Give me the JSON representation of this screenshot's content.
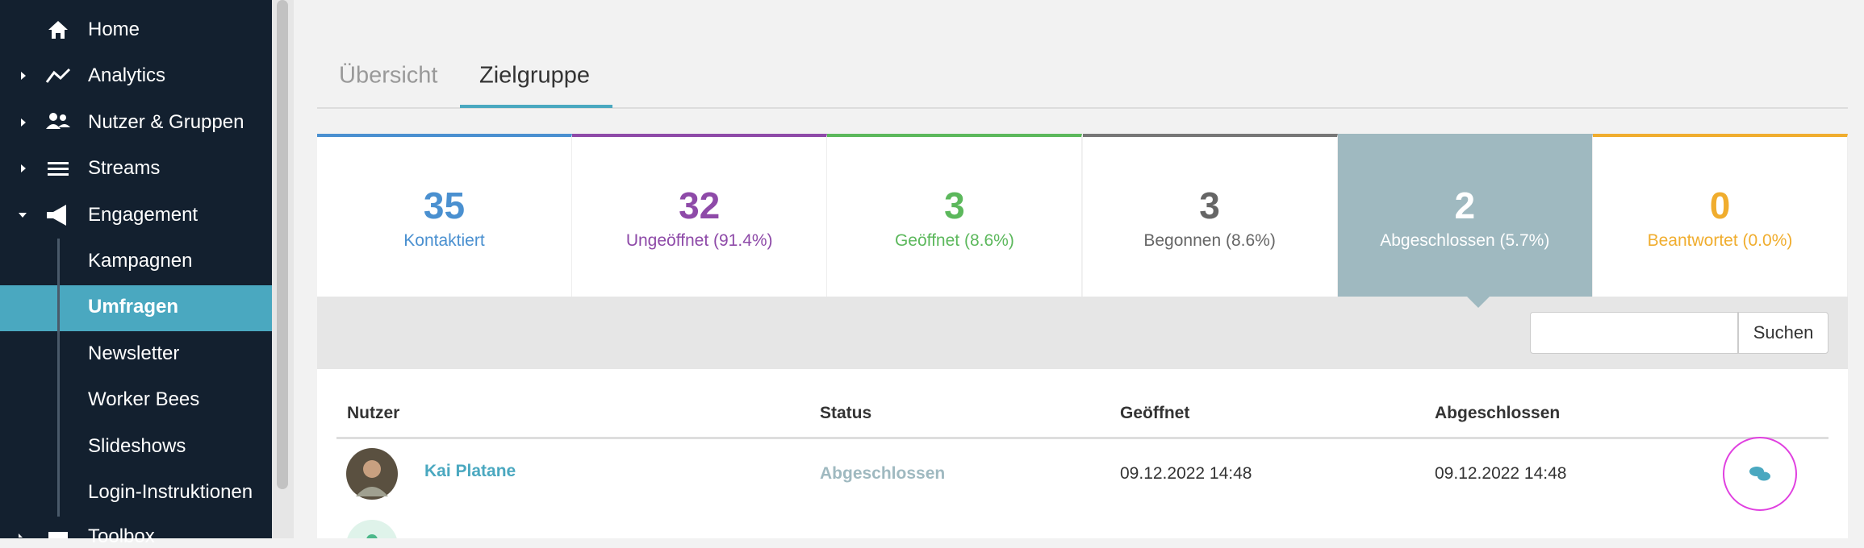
{
  "sidebar": {
    "items": [
      "Home",
      "Analytics",
      "Nutzer & Gruppen",
      "Streams",
      "Engagement",
      "Kampagnen",
      "Umfragen",
      "Newsletter",
      "Worker Bees",
      "Slideshows",
      "Login-Instruktionen",
      "Toolbox"
    ]
  },
  "tabs": [
    "Übersicht",
    "Zielgruppe"
  ],
  "stats": [
    {
      "value": 35,
      "label": "Kontaktiert"
    },
    {
      "value": 32,
      "label": "Ungeöffnet (91.4%)"
    },
    {
      "value": 3,
      "label": "Geöffnet (8.6%)"
    },
    {
      "value": 3,
      "label": "Begonnen (8.6%)"
    },
    {
      "value": 2,
      "label": "Abgeschlossen (5.7%)"
    },
    {
      "value": 0,
      "label": "Beantwortet (0.0%)"
    }
  ],
  "search": {
    "button": "Suchen"
  },
  "table": {
    "headers": [
      "Nutzer",
      "Status",
      "Geöffnet",
      "Abgeschlossen"
    ],
    "rows": [
      [
        "Kai Platane",
        "Abgeschlossen",
        "09.12.2022 14:48",
        "09.12.2022 14:48"
      ]
    ]
  }
}
